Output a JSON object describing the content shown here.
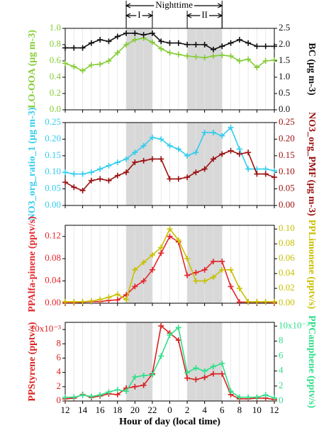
{
  "chart_data": [
    {
      "type": "line",
      "periods": [
        {
          "label": "Nighttime",
          "range": [
            19,
            30
          ]
        },
        {
          "label": "I",
          "range": [
            19,
            22
          ]
        },
        {
          "label": "II",
          "range": [
            26,
            30
          ]
        }
      ],
      "ylabel": "LO-OOA (µg m-3)",
      "y2label": "BC (µg m-3)",
      "x": [
        12,
        13,
        14,
        15,
        16,
        17,
        18,
        19,
        20,
        21,
        22,
        23,
        24,
        25,
        26,
        27,
        28,
        29,
        30,
        31,
        32,
        33,
        34,
        35,
        36
      ],
      "xlim": [
        12,
        36
      ],
      "xticks": [
        12,
        14,
        16,
        18,
        20,
        22,
        24,
        26,
        28,
        30,
        32,
        34,
        36
      ],
      "grid": true,
      "ylim": [
        0,
        1
      ],
      "yticks": [
        {
          "value": 0,
          "label": "0.0"
        },
        0.2,
        0.4,
        0.6,
        0.8,
        {
          "value": 1,
          "label": "1.0"
        }
      ],
      "y2lim": [
        0,
        2.5
      ],
      "y2ticks": [
        {
          "value": 0,
          "label": "0.0"
        },
        0.5,
        {
          "value": 1,
          "label": "1.0"
        },
        1.5,
        {
          "value": 2,
          "label": "2.0"
        },
        2.5
      ],
      "series": [
        {
          "color": "#84cc33",
          "axis": "y",
          "values": [
            0.57,
            0.53,
            0.48,
            0.55,
            0.56,
            0.6,
            0.7,
            0.8,
            0.86,
            0.88,
            0.83,
            0.75,
            0.7,
            0.68,
            0.66,
            0.65,
            0.64,
            0.66,
            0.67,
            0.66,
            0.6,
            0.62,
            0.52,
            0.6,
            0.61
          ]
        },
        {
          "color": "#111111",
          "axis": "y2",
          "values": [
            1.9,
            1.9,
            1.9,
            2.05,
            2.15,
            2.1,
            2.25,
            2.35,
            2.35,
            2.3,
            2.35,
            2.1,
            2.05,
            2.05,
            2.0,
            2.0,
            2.0,
            1.85,
            1.95,
            2.05,
            2.15,
            2.05,
            1.95,
            1.95,
            1.95
          ]
        }
      ]
    },
    {
      "type": "line",
      "ylabel": "NO3_org_ratio_1 (µg m-3)",
      "y2label": "NO3_org_PMF (µg m-3)",
      "x": [
        12,
        13,
        14,
        15,
        16,
        17,
        18,
        19,
        20,
        21,
        22,
        23,
        24,
        25,
        26,
        27,
        28,
        29,
        30,
        31,
        32,
        33,
        34,
        35,
        36
      ],
      "xlim": [
        12,
        36
      ],
      "xticks": [
        12,
        14,
        16,
        18,
        20,
        22,
        24,
        26,
        28,
        30,
        32,
        34,
        36
      ],
      "grid": true,
      "ylim": [
        0,
        0.25
      ],
      "yticks": [
        {
          "value": 0,
          "label": "0.00"
        },
        0.05,
        {
          "value": 0.1,
          "label": "0.10"
        },
        0.15,
        {
          "value": 0.2,
          "label": "0.20"
        },
        0.25
      ],
      "y2lim": [
        0,
        0.25
      ],
      "y2ticks": [
        {
          "value": 0,
          "label": "0.00"
        },
        0.05,
        {
          "value": 0.1,
          "label": "0.10"
        },
        0.15,
        {
          "value": 0.2,
          "label": "0.20"
        },
        0.25
      ],
      "series": [
        {
          "color": "#33ccee",
          "axis": "y",
          "values": [
            0.1,
            0.095,
            0.095,
            0.1,
            0.11,
            0.12,
            0.13,
            0.14,
            0.16,
            0.18,
            0.205,
            0.2,
            0.18,
            0.17,
            0.15,
            0.16,
            0.22,
            0.22,
            0.21,
            0.235,
            0.17,
            0.11,
            0.11,
            0.11,
            0.105
          ]
        },
        {
          "color": "#9b1010",
          "axis": "y2",
          "values": [
            0.07,
            0.055,
            0.045,
            0.075,
            0.08,
            0.075,
            0.09,
            0.1,
            0.13,
            0.135,
            0.14,
            0.14,
            0.08,
            0.08,
            0.085,
            0.1,
            0.11,
            0.14,
            0.155,
            0.165,
            0.155,
            0.16,
            0.095,
            0.095,
            0.085
          ]
        }
      ]
    },
    {
      "type": "line",
      "ylabel": "PPAlfa-pinene (pptv/s)",
      "y2label": "PPLimonene (pptv/s)",
      "x": [
        12,
        13,
        14,
        15,
        16,
        17,
        18,
        19,
        20,
        21,
        22,
        23,
        24,
        25,
        26,
        27,
        28,
        29,
        30,
        31,
        32,
        33,
        34,
        35,
        36
      ],
      "xlim": [
        12,
        36
      ],
      "xticks": [
        12,
        14,
        16,
        18,
        20,
        22,
        24,
        26,
        28,
        30,
        32,
        34,
        36
      ],
      "grid": true,
      "ylim": [
        0,
        0.14
      ],
      "yticks": [
        {
          "value": 0,
          "label": "0.00"
        },
        0.04,
        0.08,
        0.12
      ],
      "y2lim": [
        0,
        0.105
      ],
      "y2ticks": [
        {
          "value": 0,
          "label": "0.00"
        },
        0.02,
        0.04,
        0.06,
        0.08,
        {
          "value": 0.1,
          "label": "0.10"
        }
      ],
      "series": [
        {
          "color": "#e3262b",
          "axis": "y",
          "values": [
            0.001,
            0.001,
            0.002,
            0.003,
            0.003,
            0.005,
            0.006,
            0.015,
            0.03,
            0.04,
            0.06,
            0.09,
            0.12,
            0.11,
            0.05,
            0.055,
            0.06,
            0.075,
            0.075,
            0.03,
            0.002,
            0.002,
            0.002,
            0.002,
            0.001
          ]
        },
        {
          "color": "#c8c000",
          "axis": "y2",
          "values": [
            0.002,
            0.002,
            0.002,
            0.003,
            0.005,
            0.008,
            0.012,
            0.005,
            0.045,
            0.055,
            0.065,
            0.075,
            0.1,
            0.085,
            0.06,
            0.03,
            0.03,
            0.035,
            0.045,
            0.045,
            0.02,
            0.002,
            0.002,
            0.002,
            0.002
          ]
        }
      ]
    },
    {
      "type": "line",
      "ylabel": "PPStyrene (pptv/s)",
      "y2label": "PPCamphene (pptv/s)",
      "xlabel": "Hour of day (local time)",
      "x": [
        12,
        13,
        14,
        15,
        16,
        17,
        18,
        19,
        20,
        21,
        22,
        23,
        24,
        25,
        26,
        27,
        28,
        29,
        30,
        31,
        32,
        33,
        34,
        35,
        36
      ],
      "xlim": [
        12,
        36
      ],
      "grid": true,
      "xticks": [
        12,
        14,
        16,
        18,
        20,
        22,
        {
          "value": 24,
          "label": "0"
        },
        {
          "value": 26,
          "label": "2"
        },
        {
          "value": 28,
          "label": "4"
        },
        {
          "value": 30,
          "label": "6"
        },
        {
          "value": 32,
          "label": "8"
        },
        {
          "value": 34,
          "label": "10"
        },
        {
          "value": 36,
          "label": "12"
        }
      ],
      "ylim": [
        0,
        0.011
      ],
      "yticks": [
        0,
        {
          "value": 0.002,
          "label": "2"
        },
        {
          "value": 0.004,
          "label": "4"
        },
        {
          "value": 0.006,
          "label": "6"
        },
        {
          "value": 0.008,
          "label": "8"
        },
        {
          "value": 0.01,
          "label": "10x10⁻³"
        }
      ],
      "y2lim": [
        0,
        0.0105
      ],
      "y2ticks": [
        0,
        {
          "value": 0.002,
          "label": "2"
        },
        {
          "value": 0.004,
          "label": "4"
        },
        {
          "value": 0.006,
          "label": "6"
        },
        {
          "value": 0.008,
          "label": "8"
        },
        {
          "value": 0.01,
          "label": "10x10⁻³"
        }
      ],
      "series": [
        {
          "color": "#d9201f",
          "axis": "y",
          "values": [
            0.0003,
            0.0004,
            0.0009,
            0.0005,
            0.0007,
            0.001,
            0.0009,
            0.0018,
            0.002,
            0.0022,
            0.0038,
            0.0105,
            0.0095,
            0.0085,
            0.0032,
            0.003,
            0.0033,
            0.0038,
            0.0038,
            0.0009,
            0.0003,
            0.0003,
            0.0004,
            0.0004,
            0.0002
          ]
        },
        {
          "color": "#2fdf8a",
          "axis": "y2",
          "values": [
            0.0005,
            0.0005,
            0.0008,
            0.0006,
            0.0008,
            0.0012,
            0.0015,
            0.0013,
            0.0032,
            0.0034,
            0.0035,
            0.006,
            0.0088,
            0.0098,
            0.0038,
            0.0044,
            0.004,
            0.0046,
            0.005,
            0.0013,
            0.0005,
            0.0005,
            0.0005,
            0.0008,
            0.0004
          ]
        }
      ]
    }
  ]
}
